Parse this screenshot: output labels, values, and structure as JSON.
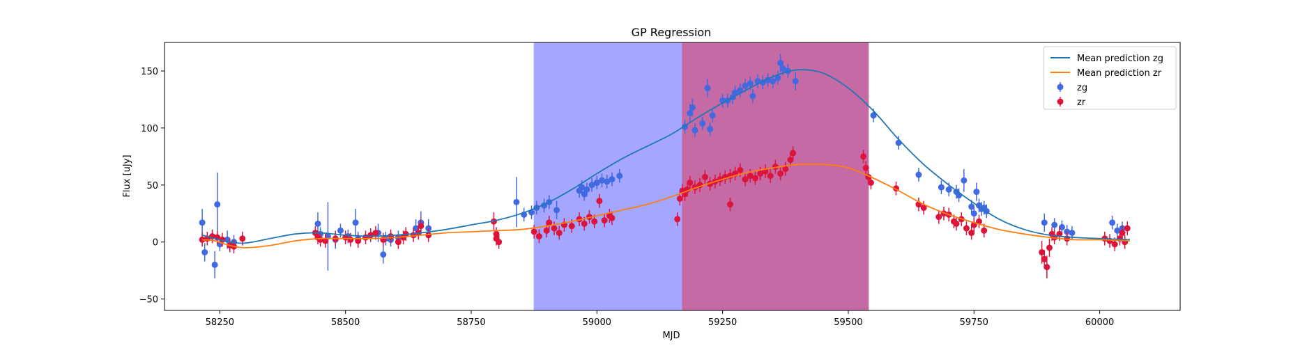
{
  "chart_data": {
    "type": "scatter",
    "title": "GP Regression",
    "xlabel": "MJD",
    "ylabel": "Flux [uJy]",
    "xlim": [
      58140,
      60160
    ],
    "ylim": [
      -60,
      175
    ],
    "xticks": [
      58250,
      58500,
      58750,
      59000,
      59250,
      59500,
      59750,
      60000
    ],
    "yticks": [
      -50,
      0,
      50,
      100,
      150
    ],
    "grid": false,
    "legend_position": "top-right",
    "shaded_regions": [
      {
        "x0": 58875,
        "x1": 59170,
        "color": "#a5a6ff"
      },
      {
        "x0": 59170,
        "x1": 59540,
        "color": "#c56aa4"
      }
    ],
    "lines": [
      {
        "name": "Mean prediction zg",
        "color": "#1f77b4",
        "x": [
          58215,
          58240,
          58270,
          58300,
          58350,
          58400,
          58450,
          58500,
          58550,
          58600,
          58650,
          58700,
          58750,
          58800,
          58850,
          58900,
          58950,
          59000,
          59050,
          59100,
          59150,
          59200,
          59250,
          59300,
          59350,
          59400,
          59450,
          59500,
          59550,
          59600,
          59650,
          59700,
          59750,
          59800,
          59850,
          59900,
          59950,
          60000,
          60060
        ],
        "y": [
          6,
          3,
          0,
          -1,
          3,
          7,
          8,
          6,
          5,
          6,
          8,
          11,
          15,
          19,
          25,
          34,
          46,
          60,
          73,
          84,
          95,
          109,
          122,
          134,
          145,
          151,
          148,
          135,
          115,
          90,
          68,
          50,
          34,
          20,
          11,
          6,
          4,
          3,
          2
        ]
      },
      {
        "name": "Mean prediction zr",
        "color": "#ff7f0e",
        "x": [
          58215,
          58240,
          58270,
          58300,
          58350,
          58400,
          58450,
          58500,
          58550,
          58600,
          58650,
          58700,
          58750,
          58800,
          58850,
          58900,
          58950,
          59000,
          59050,
          59100,
          59150,
          59200,
          59250,
          59300,
          59350,
          59400,
          59450,
          59500,
          59550,
          59600,
          59650,
          59700,
          59750,
          59800,
          59850,
          59900,
          59950,
          60000,
          60060
        ],
        "y": [
          2,
          1,
          -3,
          -5,
          -3,
          1,
          3,
          3,
          3,
          4,
          6,
          8,
          9,
          10,
          11,
          14,
          18,
          23,
          28,
          33,
          40,
          48,
          55,
          61,
          65,
          68,
          68,
          65,
          56,
          45,
          33,
          24,
          17,
          11,
          7,
          4,
          2,
          2,
          1
        ]
      }
    ],
    "series": [
      {
        "name": "zg",
        "color": "#4169e1",
        "points": [
          [
            58215,
            17,
            12
          ],
          [
            58220,
            -9,
            8
          ],
          [
            58240,
            -20,
            12
          ],
          [
            58245,
            33,
            28
          ],
          [
            58250,
            -2,
            6
          ],
          [
            58265,
            2,
            8
          ],
          [
            58278,
            0,
            6
          ],
          [
            58445,
            16,
            10
          ],
          [
            58450,
            7,
            6
          ],
          [
            58465,
            5,
            30
          ],
          [
            58480,
            2,
            8
          ],
          [
            58490,
            10,
            6
          ],
          [
            58505,
            5,
            6
          ],
          [
            58520,
            17,
            12
          ],
          [
            58525,
            3,
            6
          ],
          [
            58565,
            8,
            8
          ],
          [
            58575,
            -11,
            8
          ],
          [
            58580,
            3,
            6
          ],
          [
            58590,
            2,
            6
          ],
          [
            58605,
            4,
            6
          ],
          [
            58640,
            12,
            8
          ],
          [
            58650,
            17,
            10
          ],
          [
            58665,
            12,
            8
          ],
          [
            58840,
            35,
            22
          ],
          [
            58855,
            24,
            6
          ],
          [
            58870,
            26,
            6
          ],
          [
            58880,
            30,
            6
          ],
          [
            58895,
            32,
            6
          ],
          [
            58905,
            35,
            6
          ],
          [
            58920,
            28,
            8
          ],
          [
            58965,
            45,
            6
          ],
          [
            58970,
            48,
            6
          ],
          [
            58975,
            42,
            6
          ],
          [
            58980,
            46,
            6
          ],
          [
            58990,
            50,
            6
          ],
          [
            59000,
            52,
            6
          ],
          [
            59010,
            54,
            6
          ],
          [
            59020,
            53,
            6
          ],
          [
            59030,
            55,
            6
          ],
          [
            59045,
            58,
            6
          ],
          [
            59175,
            101,
            6
          ],
          [
            59185,
            113,
            8
          ],
          [
            59190,
            118,
            8
          ],
          [
            59195,
            98,
            6
          ],
          [
            59210,
            104,
            6
          ],
          [
            59220,
            135,
            8
          ],
          [
            59225,
            99,
            6
          ],
          [
            59230,
            111,
            6
          ],
          [
            59250,
            124,
            6
          ],
          [
            59260,
            124,
            6
          ],
          [
            59270,
            127,
            6
          ],
          [
            59275,
            131,
            6
          ],
          [
            59285,
            133,
            6
          ],
          [
            59295,
            137,
            6
          ],
          [
            59305,
            139,
            6
          ],
          [
            59310,
            128,
            6
          ],
          [
            59320,
            141,
            6
          ],
          [
            59330,
            140,
            6
          ],
          [
            59340,
            142,
            6
          ],
          [
            59350,
            141,
            6
          ],
          [
            59360,
            144,
            6
          ],
          [
            59365,
            157,
            8
          ],
          [
            59370,
            152,
            6
          ],
          [
            59380,
            150,
            6
          ],
          [
            59395,
            141,
            8
          ],
          [
            59550,
            111,
            6
          ],
          [
            59600,
            87,
            6
          ],
          [
            59640,
            59,
            6
          ],
          [
            59685,
            48,
            6
          ],
          [
            59700,
            46,
            6
          ],
          [
            59715,
            44,
            6
          ],
          [
            59720,
            41,
            6
          ],
          [
            59730,
            54,
            10
          ],
          [
            59745,
            31,
            6
          ],
          [
            59750,
            25,
            6
          ],
          [
            59755,
            44,
            8
          ],
          [
            59760,
            32,
            6
          ],
          [
            59765,
            29,
            6
          ],
          [
            59770,
            30,
            6
          ],
          [
            59775,
            27,
            6
          ],
          [
            59890,
            17,
            8
          ],
          [
            59910,
            15,
            6
          ],
          [
            59925,
            13,
            6
          ],
          [
            59935,
            9,
            6
          ],
          [
            59945,
            8,
            6
          ],
          [
            60025,
            17,
            6
          ],
          [
            60035,
            10,
            6
          ],
          [
            60045,
            12,
            6
          ]
        ]
      },
      {
        "name": "zr",
        "color": "#dc143c",
        "points": [
          [
            58215,
            2,
            6
          ],
          [
            58225,
            3,
            6
          ],
          [
            58235,
            5,
            6
          ],
          [
            58245,
            4,
            6
          ],
          [
            58255,
            2,
            6
          ],
          [
            58270,
            -3,
            6
          ],
          [
            58278,
            -4,
            6
          ],
          [
            58295,
            3,
            6
          ],
          [
            58440,
            8,
            6
          ],
          [
            58445,
            4,
            6
          ],
          [
            58450,
            2,
            6
          ],
          [
            58460,
            1,
            6
          ],
          [
            58480,
            3,
            6
          ],
          [
            58500,
            4,
            6
          ],
          [
            58510,
            2,
            6
          ],
          [
            58525,
            1,
            6
          ],
          [
            58540,
            4,
            6
          ],
          [
            58550,
            6,
            6
          ],
          [
            58560,
            8,
            6
          ],
          [
            58575,
            2,
            6
          ],
          [
            58590,
            5,
            6
          ],
          [
            58605,
            0,
            6
          ],
          [
            58615,
            4,
            6
          ],
          [
            58620,
            7,
            6
          ],
          [
            58635,
            6,
            6
          ],
          [
            58645,
            8,
            6
          ],
          [
            58650,
            14,
            6
          ],
          [
            58665,
            6,
            6
          ],
          [
            58795,
            18,
            8
          ],
          [
            58800,
            7,
            6
          ],
          [
            58805,
            0,
            6
          ],
          [
            58800,
            3,
            6
          ],
          [
            58875,
            9,
            6
          ],
          [
            58885,
            5,
            6
          ],
          [
            58900,
            10,
            6
          ],
          [
            58905,
            17,
            6
          ],
          [
            58915,
            12,
            6
          ],
          [
            58925,
            8,
            6
          ],
          [
            58935,
            15,
            6
          ],
          [
            58950,
            14,
            6
          ],
          [
            58965,
            20,
            6
          ],
          [
            58975,
            16,
            6
          ],
          [
            58985,
            22,
            6
          ],
          [
            58995,
            18,
            6
          ],
          [
            59005,
            36,
            6
          ],
          [
            59015,
            19,
            6
          ],
          [
            59025,
            23,
            6
          ],
          [
            59030,
            21,
            6
          ],
          [
            59160,
            20,
            6
          ],
          [
            59165,
            38,
            6
          ],
          [
            59170,
            45,
            6
          ],
          [
            59175,
            42,
            6
          ],
          [
            59180,
            46,
            6
          ],
          [
            59185,
            52,
            6
          ],
          [
            59195,
            48,
            6
          ],
          [
            59205,
            50,
            6
          ],
          [
            59215,
            57,
            6
          ],
          [
            59225,
            51,
            6
          ],
          [
            59235,
            53,
            6
          ],
          [
            59245,
            55,
            6
          ],
          [
            59255,
            57,
            6
          ],
          [
            59265,
            58,
            6
          ],
          [
            59275,
            60,
            6
          ],
          [
            59265,
            33,
            6
          ],
          [
            59285,
            63,
            6
          ],
          [
            59295,
            55,
            6
          ],
          [
            59305,
            58,
            6
          ],
          [
            59315,
            56,
            6
          ],
          [
            59325,
            60,
            6
          ],
          [
            59335,
            62,
            6
          ],
          [
            59345,
            58,
            6
          ],
          [
            59355,
            66,
            6
          ],
          [
            59365,
            60,
            6
          ],
          [
            59375,
            64,
            6
          ],
          [
            59385,
            72,
            6
          ],
          [
            59390,
            78,
            6
          ],
          [
            59530,
            75,
            6
          ],
          [
            59535,
            65,
            6
          ],
          [
            59540,
            57,
            6
          ],
          [
            59545,
            52,
            6
          ],
          [
            59595,
            47,
            6
          ],
          [
            59640,
            33,
            6
          ],
          [
            59650,
            30,
            6
          ],
          [
            59680,
            22,
            6
          ],
          [
            59690,
            25,
            6
          ],
          [
            59700,
            24,
            6
          ],
          [
            59710,
            18,
            6
          ],
          [
            59715,
            16,
            6
          ],
          [
            59725,
            20,
            6
          ],
          [
            59735,
            12,
            6
          ],
          [
            59745,
            8,
            6
          ],
          [
            59750,
            15,
            6
          ],
          [
            59760,
            18,
            6
          ],
          [
            59770,
            10,
            6
          ],
          [
            59885,
            -9,
            10
          ],
          [
            59890,
            -15,
            8
          ],
          [
            59895,
            -22,
            10
          ],
          [
            59900,
            -5,
            8
          ],
          [
            59905,
            7,
            6
          ],
          [
            59910,
            4,
            6
          ],
          [
            59920,
            7,
            6
          ],
          [
            59935,
            3,
            6
          ],
          [
            60010,
            3,
            6
          ],
          [
            60020,
            1,
            6
          ],
          [
            60030,
            -2,
            6
          ],
          [
            60040,
            3,
            6
          ],
          [
            60045,
            8,
            6
          ],
          [
            60050,
            0,
            6
          ],
          [
            60055,
            12,
            6
          ]
        ]
      }
    ]
  }
}
